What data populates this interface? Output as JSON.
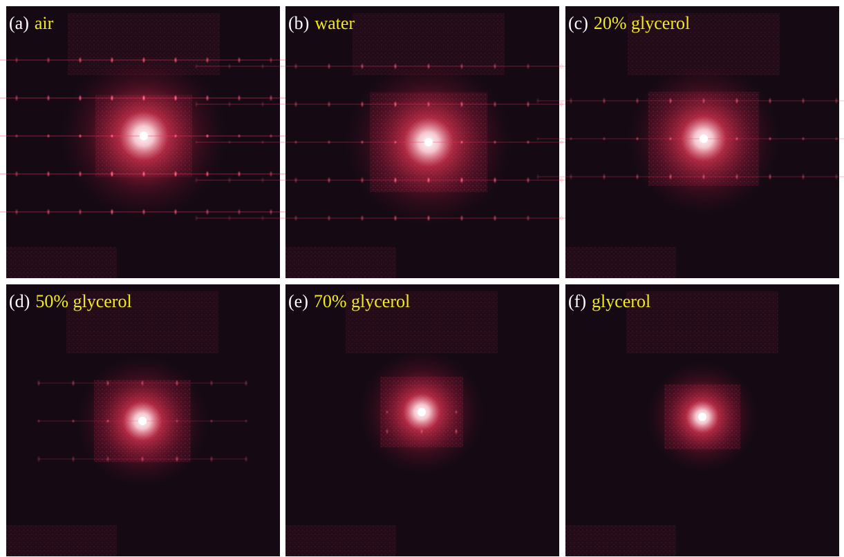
{
  "panels": [
    {
      "letter": "(a)",
      "label": "air"
    },
    {
      "letter": "(b)",
      "label": "water"
    },
    {
      "letter": "(c)",
      "label": "20% glycerol"
    },
    {
      "letter": "(d)",
      "label": "50% glycerol"
    },
    {
      "letter": "(e)",
      "label": "70% glycerol"
    },
    {
      "letter": "(f)",
      "label": "glycerol"
    }
  ]
}
